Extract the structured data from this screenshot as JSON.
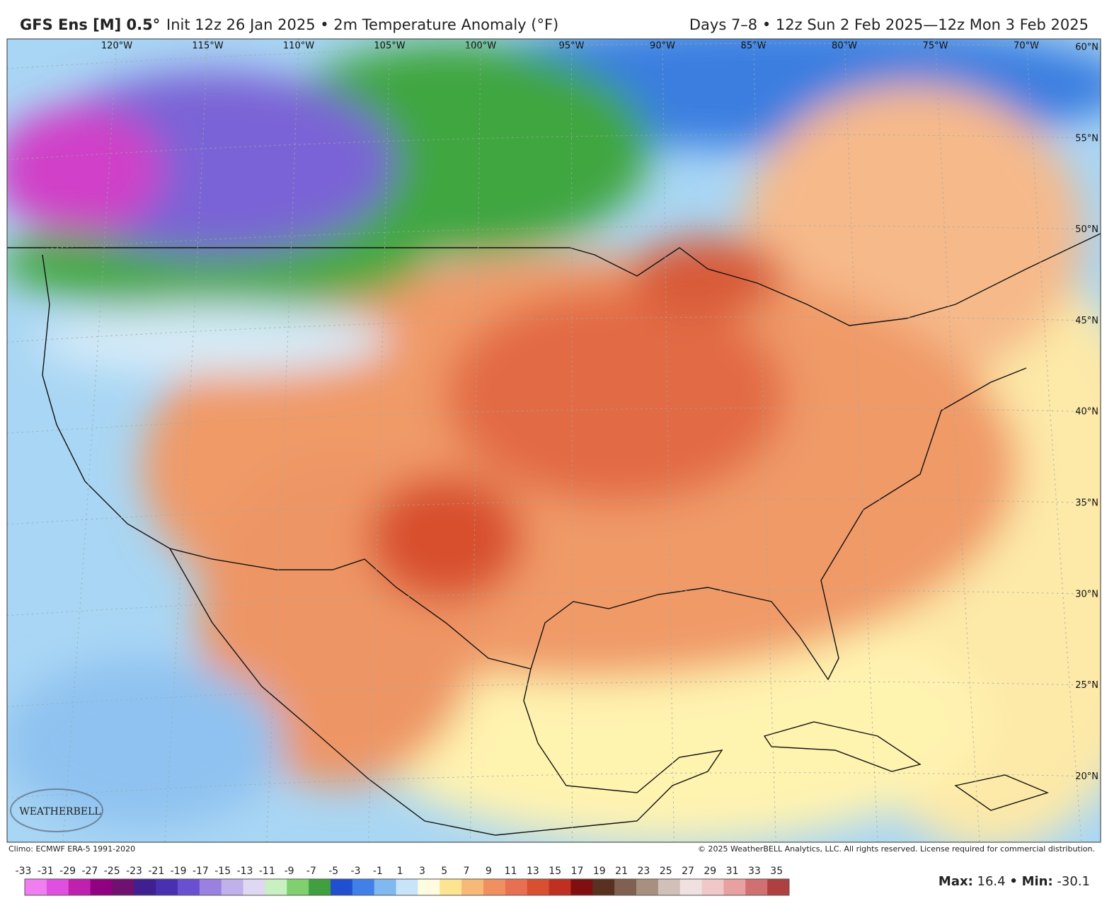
{
  "header": {
    "model": "GFS Ens [M] 0.5°",
    "subtitle": "Init 12z 26 Jan 2025 • 2m Temperature Anomaly (°F)",
    "valid": "Days 7–8 • 12z Sun 2 Feb 2025—12z Mon 3 Feb 2025"
  },
  "map": {
    "longitude_labels": [
      "120°W",
      "115°W",
      "110°W",
      "105°W",
      "100°W",
      "95°W",
      "90°W",
      "85°W",
      "80°W",
      "75°W",
      "70°W"
    ],
    "latitude_labels": [
      "60°N",
      "55°N",
      "50°N",
      "45°N",
      "40°N",
      "35°N",
      "30°N",
      "25°N",
      "20°N"
    ],
    "logo": "WEATHERBELL"
  },
  "footer": {
    "climo": "Climo: ECMWF ERA-5 1991-2020",
    "copyright": "© 2025 WeatherBELL Analytics, LLC. All rights reserved. License required for commercial distribution.",
    "max_label": "Max:",
    "max": 16.4,
    "separator": "•",
    "min_label": "Min:",
    "min": -30.1
  },
  "colorbar": {
    "labels": [
      -33,
      -31,
      -29,
      -27,
      -25,
      -23,
      -21,
      -19,
      -17,
      -15,
      -13,
      -11,
      -9,
      -7,
      -5,
      -3,
      -1,
      1,
      3,
      5,
      7,
      9,
      11,
      13,
      15,
      17,
      19,
      21,
      23,
      25,
      27,
      29,
      31,
      33,
      35
    ],
    "colors": [
      "#f07ef0",
      "#e050e0",
      "#c020b0",
      "#900080",
      "#701070",
      "#402090",
      "#4a30b0",
      "#6a50d0",
      "#9a80e0",
      "#c0b0ec",
      "#e0d8f2",
      "#c8f0c0",
      "#80d070",
      "#40a040",
      "#2050d0",
      "#4080e8",
      "#80b8f0",
      "#c8e4f8",
      "#fffbe0",
      "#fde490",
      "#f8b878",
      "#f09060",
      "#e87050",
      "#d85030",
      "#c03020",
      "#801010",
      "#5a3020",
      "#806050",
      "#a89080",
      "#d0c0b8",
      "#f0e0e0",
      "#f0c8c8",
      "#e8a0a0",
      "#d07070",
      "#b04040"
    ]
  }
}
